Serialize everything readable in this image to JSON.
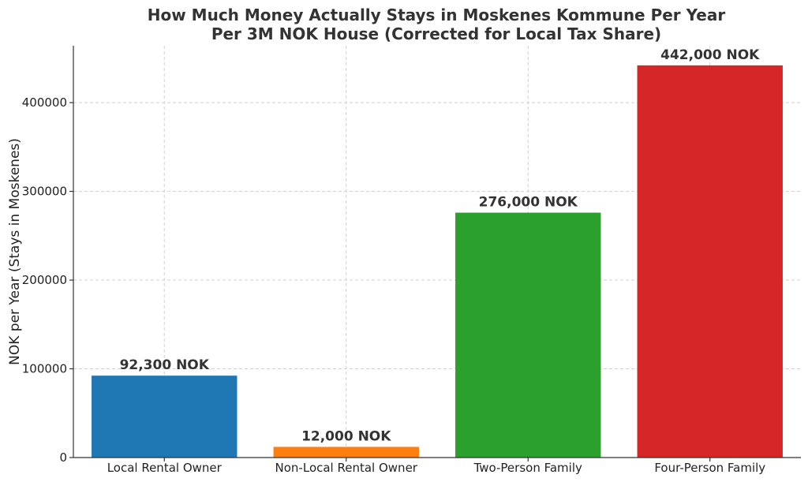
{
  "chart_data": {
    "type": "bar",
    "title_lines": [
      "How Much Money Actually Stays in Moskenes Kommune Per Year",
      "Per 3M NOK House (Corrected for Local Tax Share)"
    ],
    "ylabel": "NOK per Year (Stays in Moskenes)",
    "xlabel": "",
    "categories": [
      "Local Rental Owner",
      "Non-Local Rental Owner",
      "Two-Person Family",
      "Four-Person Family"
    ],
    "values": [
      92300,
      12000,
      276000,
      442000
    ],
    "data_labels": [
      "92,300 NOK",
      "12,000 NOK",
      "276,000 NOK",
      "442,000 NOK"
    ],
    "colors": [
      "#1f77b4",
      "#ff7f0e",
      "#2ca02c",
      "#d62728"
    ],
    "y_ticks": [
      0,
      100000,
      200000,
      300000,
      400000
    ],
    "ylim": [
      0,
      464100
    ],
    "grid": true,
    "legend": "none"
  }
}
